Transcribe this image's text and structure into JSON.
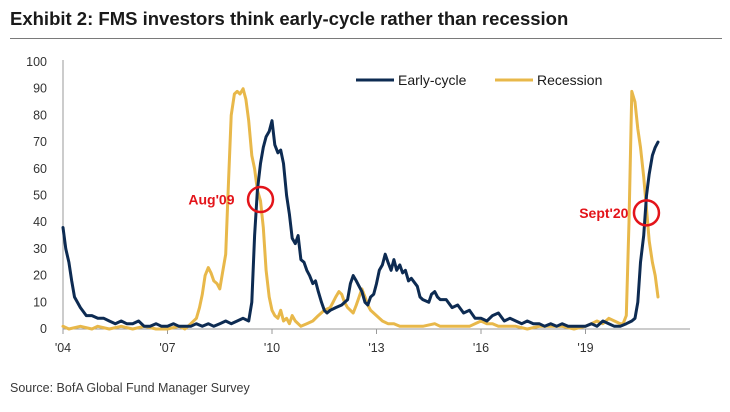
{
  "title": "Exhibit 2: FMS investors think early-cycle rather than recession",
  "source": "Source: BofA Global Fund Manager Survey",
  "chart_data": {
    "type": "line",
    "title": "Exhibit 2: FMS investors think early-cycle rather than recession",
    "xlabel": "",
    "ylabel": "",
    "xlim": [
      2004.0,
      2022.0
    ],
    "ylim": [
      0,
      100
    ],
    "yticks": [
      0,
      10,
      20,
      30,
      40,
      50,
      60,
      70,
      80,
      90,
      100
    ],
    "xticks": [
      {
        "value": 2004,
        "label": "'04"
      },
      {
        "value": 2007,
        "label": "'07"
      },
      {
        "value": 2010,
        "label": "'10"
      },
      {
        "value": 2013,
        "label": "'13"
      },
      {
        "value": 2016,
        "label": "'16"
      },
      {
        "value": 2019,
        "label": "'19"
      }
    ],
    "legend_position": "top-right",
    "series": [
      {
        "name": "Early-cycle",
        "color": "#0d2b52",
        "points": [
          [
            2004.0,
            38
          ],
          [
            2004.08,
            30
          ],
          [
            2004.17,
            25
          ],
          [
            2004.25,
            18
          ],
          [
            2004.33,
            12
          ],
          [
            2004.5,
            8
          ],
          [
            2004.67,
            5
          ],
          [
            2004.83,
            5
          ],
          [
            2005.0,
            4
          ],
          [
            2005.17,
            4
          ],
          [
            2005.33,
            3
          ],
          [
            2005.5,
            2
          ],
          [
            2005.67,
            3
          ],
          [
            2005.83,
            2
          ],
          [
            2006.0,
            2
          ],
          [
            2006.17,
            3
          ],
          [
            2006.33,
            1
          ],
          [
            2006.5,
            1
          ],
          [
            2006.67,
            2
          ],
          [
            2006.83,
            1
          ],
          [
            2007.0,
            1
          ],
          [
            2007.17,
            2
          ],
          [
            2007.33,
            1
          ],
          [
            2007.5,
            1
          ],
          [
            2007.67,
            1
          ],
          [
            2007.83,
            2
          ],
          [
            2008.0,
            1
          ],
          [
            2008.17,
            2
          ],
          [
            2008.33,
            1
          ],
          [
            2008.5,
            2
          ],
          [
            2008.67,
            3
          ],
          [
            2008.83,
            2
          ],
          [
            2009.0,
            3
          ],
          [
            2009.17,
            4
          ],
          [
            2009.33,
            3
          ],
          [
            2009.42,
            10
          ],
          [
            2009.5,
            35
          ],
          [
            2009.58,
            52
          ],
          [
            2009.67,
            62
          ],
          [
            2009.75,
            68
          ],
          [
            2009.83,
            72
          ],
          [
            2009.92,
            74
          ],
          [
            2010.0,
            78
          ],
          [
            2010.08,
            69
          ],
          [
            2010.17,
            66
          ],
          [
            2010.25,
            67
          ],
          [
            2010.33,
            62
          ],
          [
            2010.42,
            50
          ],
          [
            2010.5,
            43
          ],
          [
            2010.58,
            34
          ],
          [
            2010.67,
            32
          ],
          [
            2010.75,
            35
          ],
          [
            2010.83,
            26
          ],
          [
            2010.92,
            25
          ],
          [
            2011.0,
            22
          ],
          [
            2011.08,
            20
          ],
          [
            2011.17,
            17
          ],
          [
            2011.25,
            18
          ],
          [
            2011.33,
            14
          ],
          [
            2011.42,
            10
          ],
          [
            2011.5,
            7
          ],
          [
            2011.58,
            6
          ],
          [
            2011.67,
            7
          ],
          [
            2011.83,
            8
          ],
          [
            2012.0,
            9
          ],
          [
            2012.17,
            11
          ],
          [
            2012.25,
            17
          ],
          [
            2012.33,
            20
          ],
          [
            2012.42,
            18
          ],
          [
            2012.5,
            16
          ],
          [
            2012.58,
            14
          ],
          [
            2012.67,
            10
          ],
          [
            2012.75,
            9
          ],
          [
            2012.83,
            12
          ],
          [
            2012.92,
            13
          ],
          [
            2013.0,
            17
          ],
          [
            2013.08,
            22
          ],
          [
            2013.17,
            24
          ],
          [
            2013.25,
            28
          ],
          [
            2013.33,
            25
          ],
          [
            2013.42,
            22
          ],
          [
            2013.5,
            26
          ],
          [
            2013.58,
            22
          ],
          [
            2013.67,
            24
          ],
          [
            2013.75,
            21
          ],
          [
            2013.83,
            22
          ],
          [
            2013.92,
            18
          ],
          [
            2014.0,
            19
          ],
          [
            2014.17,
            16
          ],
          [
            2014.25,
            12
          ],
          [
            2014.33,
            11
          ],
          [
            2014.5,
            10
          ],
          [
            2014.58,
            13
          ],
          [
            2014.67,
            14
          ],
          [
            2014.75,
            12
          ],
          [
            2014.83,
            11
          ],
          [
            2015.0,
            11
          ],
          [
            2015.17,
            8
          ],
          [
            2015.33,
            9
          ],
          [
            2015.5,
            6
          ],
          [
            2015.67,
            7
          ],
          [
            2015.83,
            4
          ],
          [
            2016.0,
            4
          ],
          [
            2016.17,
            3
          ],
          [
            2016.33,
            5
          ],
          [
            2016.5,
            6
          ],
          [
            2016.67,
            3
          ],
          [
            2016.83,
            4
          ],
          [
            2017.0,
            3
          ],
          [
            2017.17,
            2
          ],
          [
            2017.33,
            3
          ],
          [
            2017.5,
            2
          ],
          [
            2017.67,
            2
          ],
          [
            2017.83,
            1
          ],
          [
            2018.0,
            2
          ],
          [
            2018.17,
            1
          ],
          [
            2018.33,
            2
          ],
          [
            2018.5,
            1
          ],
          [
            2018.67,
            1
          ],
          [
            2018.83,
            1
          ],
          [
            2019.0,
            1
          ],
          [
            2019.17,
            2
          ],
          [
            2019.33,
            1
          ],
          [
            2019.5,
            3
          ],
          [
            2019.67,
            2
          ],
          [
            2019.83,
            1
          ],
          [
            2020.0,
            1
          ],
          [
            2020.17,
            2
          ],
          [
            2020.33,
            3
          ],
          [
            2020.42,
            4
          ],
          [
            2020.5,
            10
          ],
          [
            2020.58,
            25
          ],
          [
            2020.67,
            35
          ],
          [
            2020.75,
            50
          ],
          [
            2020.83,
            58
          ],
          [
            2020.92,
            65
          ],
          [
            2021.0,
            68
          ],
          [
            2021.08,
            70
          ]
        ]
      },
      {
        "name": "Recession",
        "color": "#e8b84a",
        "points": [
          [
            2004.0,
            1
          ],
          [
            2004.17,
            0
          ],
          [
            2004.5,
            1
          ],
          [
            2004.83,
            0
          ],
          [
            2005.0,
            1
          ],
          [
            2005.33,
            0
          ],
          [
            2005.67,
            1
          ],
          [
            2006.0,
            0
          ],
          [
            2006.33,
            1
          ],
          [
            2006.67,
            0
          ],
          [
            2007.0,
            0
          ],
          [
            2007.33,
            1
          ],
          [
            2007.5,
            0
          ],
          [
            2007.67,
            2
          ],
          [
            2007.83,
            4
          ],
          [
            2007.92,
            8
          ],
          [
            2008.0,
            13
          ],
          [
            2008.08,
            20
          ],
          [
            2008.17,
            23
          ],
          [
            2008.25,
            21
          ],
          [
            2008.33,
            18
          ],
          [
            2008.42,
            17
          ],
          [
            2008.5,
            15
          ],
          [
            2008.58,
            21
          ],
          [
            2008.67,
            28
          ],
          [
            2008.75,
            55
          ],
          [
            2008.83,
            80
          ],
          [
            2008.92,
            88
          ],
          [
            2009.0,
            89
          ],
          [
            2009.08,
            88
          ],
          [
            2009.17,
            90
          ],
          [
            2009.25,
            86
          ],
          [
            2009.33,
            78
          ],
          [
            2009.42,
            65
          ],
          [
            2009.5,
            60
          ],
          [
            2009.58,
            52
          ],
          [
            2009.67,
            48
          ],
          [
            2009.75,
            38
          ],
          [
            2009.83,
            22
          ],
          [
            2009.92,
            12
          ],
          [
            2010.0,
            7
          ],
          [
            2010.08,
            5
          ],
          [
            2010.17,
            4
          ],
          [
            2010.25,
            7
          ],
          [
            2010.33,
            3
          ],
          [
            2010.42,
            4
          ],
          [
            2010.5,
            2
          ],
          [
            2010.58,
            5
          ],
          [
            2010.67,
            3
          ],
          [
            2010.83,
            1
          ],
          [
            2011.0,
            2
          ],
          [
            2011.17,
            3
          ],
          [
            2011.33,
            5
          ],
          [
            2011.5,
            7
          ],
          [
            2011.67,
            8
          ],
          [
            2011.75,
            10
          ],
          [
            2011.83,
            12
          ],
          [
            2011.92,
            14
          ],
          [
            2012.0,
            13
          ],
          [
            2012.08,
            10
          ],
          [
            2012.17,
            8
          ],
          [
            2012.33,
            6
          ],
          [
            2012.42,
            9
          ],
          [
            2012.5,
            12
          ],
          [
            2012.58,
            15
          ],
          [
            2012.67,
            12
          ],
          [
            2012.75,
            9
          ],
          [
            2012.83,
            7
          ],
          [
            2013.0,
            5
          ],
          [
            2013.17,
            3
          ],
          [
            2013.33,
            2
          ],
          [
            2013.5,
            2
          ],
          [
            2013.67,
            1
          ],
          [
            2014.0,
            1
          ],
          [
            2014.33,
            1
          ],
          [
            2014.67,
            2
          ],
          [
            2014.83,
            1
          ],
          [
            2015.0,
            1
          ],
          [
            2015.33,
            1
          ],
          [
            2015.67,
            1
          ],
          [
            2016.0,
            3
          ],
          [
            2016.17,
            2
          ],
          [
            2016.33,
            2
          ],
          [
            2016.5,
            1
          ],
          [
            2016.83,
            1
          ],
          [
            2017.0,
            1
          ],
          [
            2017.33,
            0
          ],
          [
            2017.67,
            1
          ],
          [
            2018.0,
            1
          ],
          [
            2018.33,
            1
          ],
          [
            2018.67,
            0
          ],
          [
            2019.0,
            1
          ],
          [
            2019.17,
            2
          ],
          [
            2019.33,
            3
          ],
          [
            2019.5,
            2
          ],
          [
            2019.67,
            4
          ],
          [
            2019.83,
            3
          ],
          [
            2020.0,
            2
          ],
          [
            2020.08,
            2
          ],
          [
            2020.17,
            5
          ],
          [
            2020.25,
            40
          ],
          [
            2020.33,
            89
          ],
          [
            2020.42,
            85
          ],
          [
            2020.5,
            75
          ],
          [
            2020.58,
            68
          ],
          [
            2020.67,
            57
          ],
          [
            2020.75,
            45
          ],
          [
            2020.83,
            33
          ],
          [
            2020.92,
            25
          ],
          [
            2021.0,
            20
          ],
          [
            2021.08,
            12
          ]
        ]
      }
    ],
    "annotations": [
      {
        "label": "Aug'09",
        "color": "#e3141a",
        "x": 2009.67,
        "y": 48.5
      },
      {
        "label": "Sept'20",
        "color": "#e3141a",
        "x": 2020.75,
        "y": 43.5
      }
    ]
  }
}
